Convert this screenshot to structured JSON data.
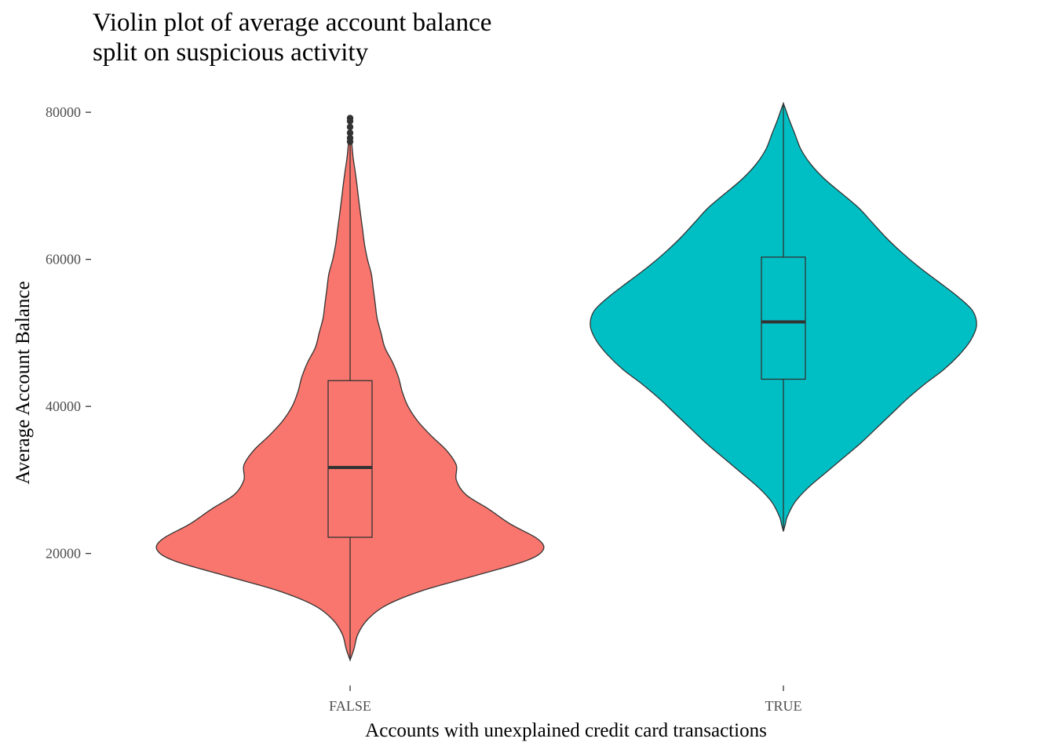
{
  "chart_data": {
    "type": "violin",
    "title_lines": [
      "Violin plot of average account balance",
      "split on suspicious activity"
    ],
    "xlabel": "Accounts with unexplained credit card transactions",
    "ylabel": "Average Account Balance",
    "categories": [
      "FALSE",
      "TRUE"
    ],
    "y_ticks": [
      20000,
      40000,
      60000,
      80000
    ],
    "ylim": [
      3000,
      83000
    ],
    "grid": false,
    "legend": "none",
    "groups": [
      {
        "category": "FALSE",
        "fill": "#F8766D",
        "y_min": 5500,
        "y_max": 79200,
        "density_profile": [
          [
            5500,
            0.0
          ],
          [
            7000,
            0.02
          ],
          [
            9000,
            0.04
          ],
          [
            11000,
            0.09
          ],
          [
            13000,
            0.19
          ],
          [
            15000,
            0.38
          ],
          [
            17000,
            0.65
          ],
          [
            19000,
            0.91
          ],
          [
            20500,
            1.0
          ],
          [
            22000,
            0.97
          ],
          [
            24000,
            0.83
          ],
          [
            26000,
            0.72
          ],
          [
            28000,
            0.6
          ],
          [
            30000,
            0.55
          ],
          [
            32000,
            0.55
          ],
          [
            34000,
            0.5
          ],
          [
            36000,
            0.42
          ],
          [
            38000,
            0.35
          ],
          [
            40000,
            0.3
          ],
          [
            42000,
            0.27
          ],
          [
            44000,
            0.25
          ],
          [
            46000,
            0.22
          ],
          [
            48000,
            0.18
          ],
          [
            50000,
            0.16
          ],
          [
            52000,
            0.14
          ],
          [
            54000,
            0.13
          ],
          [
            56000,
            0.12
          ],
          [
            58000,
            0.11
          ],
          [
            60000,
            0.09
          ],
          [
            62000,
            0.075
          ],
          [
            64000,
            0.065
          ],
          [
            66000,
            0.055
          ],
          [
            68000,
            0.045
          ],
          [
            70000,
            0.036
          ],
          [
            72000,
            0.026
          ],
          [
            74000,
            0.015
          ],
          [
            76000,
            0.008
          ],
          [
            78000,
            0.003
          ],
          [
            79200,
            0.0
          ]
        ],
        "box": {
          "q1": 22200,
          "median": 31700,
          "q3": 43500,
          "whisker_low": 5500,
          "whisker_high": 75800
        },
        "outliers": [
          76000,
          76500,
          77200,
          78000,
          78800,
          79200
        ]
      },
      {
        "category": "TRUE",
        "fill": "#00BFC4",
        "y_min": 23000,
        "y_max": 81200,
        "density_profile": [
          [
            23000,
            0.0
          ],
          [
            24000,
            0.01
          ],
          [
            25000,
            0.02
          ],
          [
            27000,
            0.06
          ],
          [
            29000,
            0.13
          ],
          [
            31000,
            0.22
          ],
          [
            33000,
            0.31
          ],
          [
            35000,
            0.4
          ],
          [
            37000,
            0.48
          ],
          [
            39000,
            0.56
          ],
          [
            41000,
            0.64
          ],
          [
            43000,
            0.73
          ],
          [
            45000,
            0.83
          ],
          [
            47000,
            0.91
          ],
          [
            49000,
            0.97
          ],
          [
            51000,
            1.0
          ],
          [
            53000,
            0.98
          ],
          [
            55000,
            0.9
          ],
          [
            57000,
            0.8
          ],
          [
            59000,
            0.7
          ],
          [
            61000,
            0.61
          ],
          [
            63000,
            0.53
          ],
          [
            65000,
            0.46
          ],
          [
            67000,
            0.39
          ],
          [
            69000,
            0.3
          ],
          [
            71000,
            0.21
          ],
          [
            73000,
            0.14
          ],
          [
            75000,
            0.09
          ],
          [
            77000,
            0.06
          ],
          [
            79000,
            0.03
          ],
          [
            80500,
            0.01
          ],
          [
            81200,
            0.0
          ]
        ],
        "box": {
          "q1": 43700,
          "median": 51500,
          "q3": 60300,
          "whisker_low": 23000,
          "whisker_high": 81200
        },
        "outliers": []
      }
    ]
  }
}
